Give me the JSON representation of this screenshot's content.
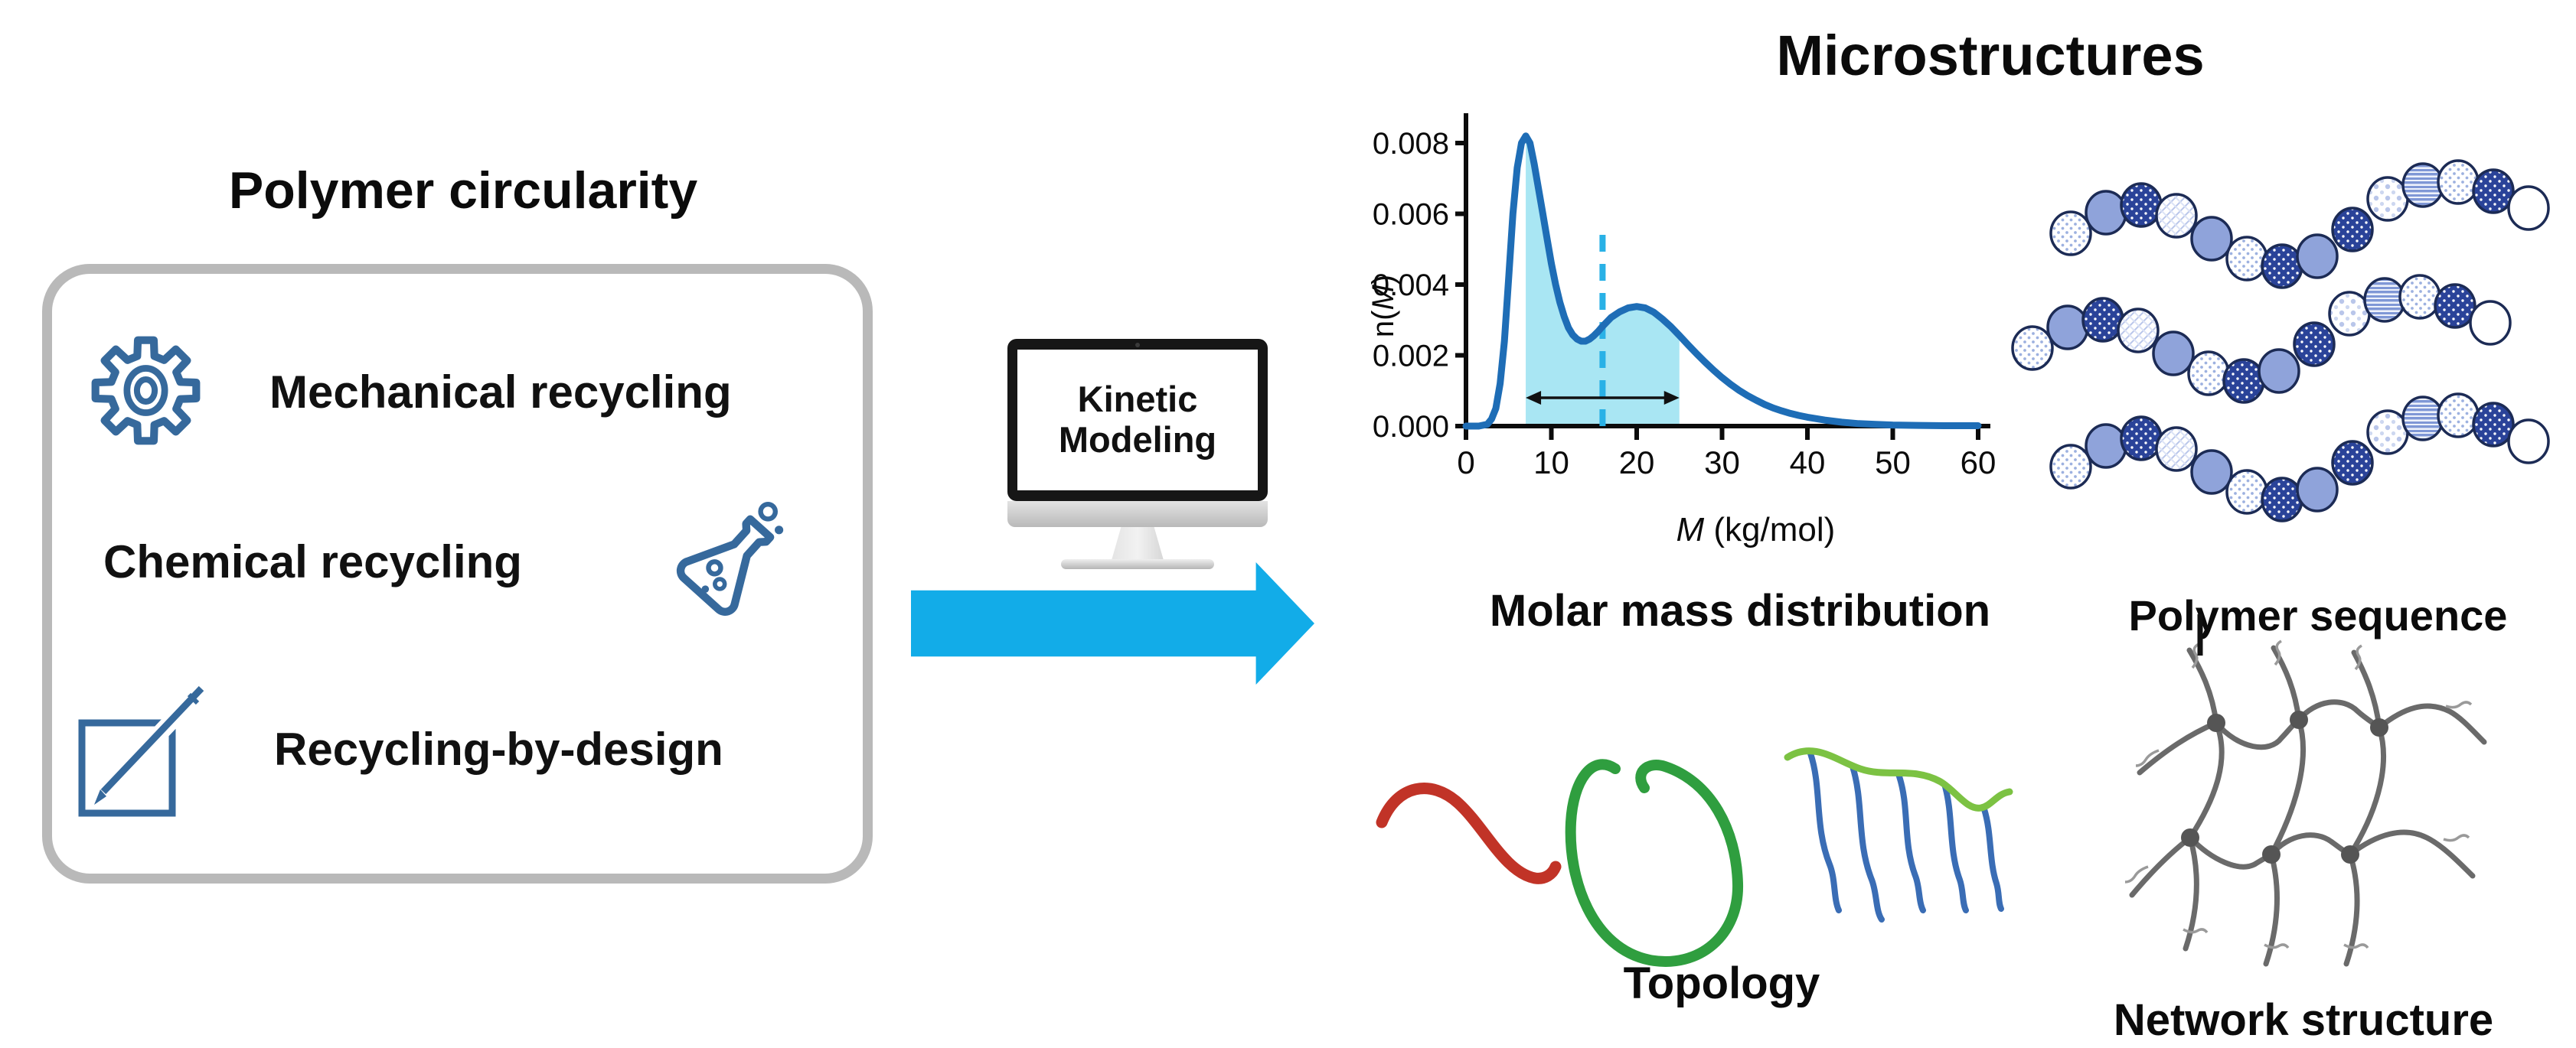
{
  "left_panel": {
    "title": "Polymer circularity",
    "items": [
      {
        "icon": "gear-icon",
        "label": "Mechanical recycling"
      },
      {
        "icon": "flask-icon",
        "label": "Chemical recycling"
      },
      {
        "icon": "edit-icon",
        "label": "Recycling-by-design"
      }
    ]
  },
  "process": {
    "monitor_lines": [
      "Kinetic",
      "Modeling"
    ]
  },
  "right_panel": {
    "title": "Microstructures",
    "labels": {
      "chart": "Molar mass distribution",
      "sequence": "Polymer sequence",
      "topology": "Topology",
      "network": "Network structure"
    }
  },
  "chart_data": {
    "type": "area",
    "title": "Molar mass distribution",
    "xlabel": "M (kg/mol)",
    "ylabel": "n(M)",
    "xlabel_parts": [
      [
        "M",
        true
      ],
      [
        " (kg/mol)",
        false
      ]
    ],
    "ylabel_parts": [
      [
        "n(",
        false
      ],
      [
        "M",
        true
      ],
      [
        ")",
        false
      ]
    ],
    "xlim": [
      0,
      60
    ],
    "ylim": [
      0,
      0.0088
    ],
    "xticks": [
      0,
      10,
      20,
      30,
      40,
      50,
      60
    ],
    "yticks": [
      0,
      0.002,
      0.004,
      0.006,
      0.008
    ],
    "grid": false,
    "legend": "none",
    "curve": [
      [
        0,
        0
      ],
      [
        1.5,
        0
      ],
      [
        2.5,
        5e-05
      ],
      [
        3,
        0.0002
      ],
      [
        3.5,
        0.0005
      ],
      [
        4,
        0.0012
      ],
      [
        4.5,
        0.0024
      ],
      [
        5,
        0.0042
      ],
      [
        5.5,
        0.006
      ],
      [
        6,
        0.0073
      ],
      [
        6.5,
        0.008
      ],
      [
        7,
        0.0082
      ],
      [
        7.5,
        0.008
      ],
      [
        8,
        0.0074
      ],
      [
        8.5,
        0.0067
      ],
      [
        9,
        0.006
      ],
      [
        9.5,
        0.0053
      ],
      [
        10,
        0.0046
      ],
      [
        10.5,
        0.004
      ],
      [
        11,
        0.0035
      ],
      [
        11.5,
        0.0031
      ],
      [
        12,
        0.00278
      ],
      [
        12.5,
        0.00258
      ],
      [
        13,
        0.00246
      ],
      [
        13.5,
        0.0024
      ],
      [
        14,
        0.0024
      ],
      [
        14.5,
        0.00246
      ],
      [
        15,
        0.00256
      ],
      [
        15.5,
        0.00268
      ],
      [
        16,
        0.00282
      ],
      [
        17,
        0.00307
      ],
      [
        18,
        0.00323
      ],
      [
        19,
        0.00334
      ],
      [
        20,
        0.00338
      ],
      [
        21,
        0.00334
      ],
      [
        22,
        0.00322
      ],
      [
        23,
        0.00303
      ],
      [
        24,
        0.00281
      ],
      [
        25,
        0.00256
      ],
      [
        26,
        0.0023
      ],
      [
        27,
        0.00205
      ],
      [
        28,
        0.00181
      ],
      [
        29,
        0.00158
      ],
      [
        30,
        0.00137
      ],
      [
        31,
        0.00118
      ],
      [
        32,
        0.00101
      ],
      [
        33,
        0.00086
      ],
      [
        34,
        0.00073
      ],
      [
        35,
        0.00061
      ],
      [
        36,
        0.00051
      ],
      [
        37,
        0.00043
      ],
      [
        38,
        0.00036
      ],
      [
        39,
        0.0003
      ],
      [
        40,
        0.00025
      ],
      [
        42,
        0.00017
      ],
      [
        44,
        0.00011
      ],
      [
        46,
        7e-05
      ],
      [
        48,
        5e-05
      ],
      [
        50,
        3e-05
      ],
      [
        53,
        2e-05
      ],
      [
        56,
        1e-05
      ],
      [
        60,
        1e-05
      ]
    ],
    "peaks": [
      {
        "M": 7,
        "n": 0.0082
      },
      {
        "M": 20,
        "n": 0.0034
      }
    ],
    "shaded_region_M": [
      7,
      25
    ],
    "dashed_line_M": 16,
    "span_arrow_n": 0.0008,
    "colors": {
      "curve": "#1e6db6",
      "shade": "#a9e6f3",
      "dashed": "#29b1e6",
      "axis": "#0b0b0b"
    }
  },
  "sequence": {
    "chains": 3,
    "beads_per_chain": 14,
    "bead_patterns": [
      "dotgrid",
      "solid",
      "navydot",
      "lattice",
      "solid",
      "dotgrid",
      "navydot",
      "solid",
      "navydot",
      "bigdot",
      "stripes",
      "dotgrid",
      "navydot",
      "plain"
    ],
    "colors": {
      "solid": "#8fa3da",
      "navy": "#2a4399",
      "outline": "#1c2b55",
      "accent": "#9db1e0"
    }
  },
  "misc_colors": {
    "arrow": "#12ace8",
    "icon_blue": "#36699c",
    "box_border": "#b9b9b9",
    "topology_red": "#c13327",
    "topology_green": "#2f9e3f",
    "topology_lightgreen": "#7cc243",
    "topology_blue": "#3a6db5",
    "network_gray": "#6a6a6a"
  }
}
